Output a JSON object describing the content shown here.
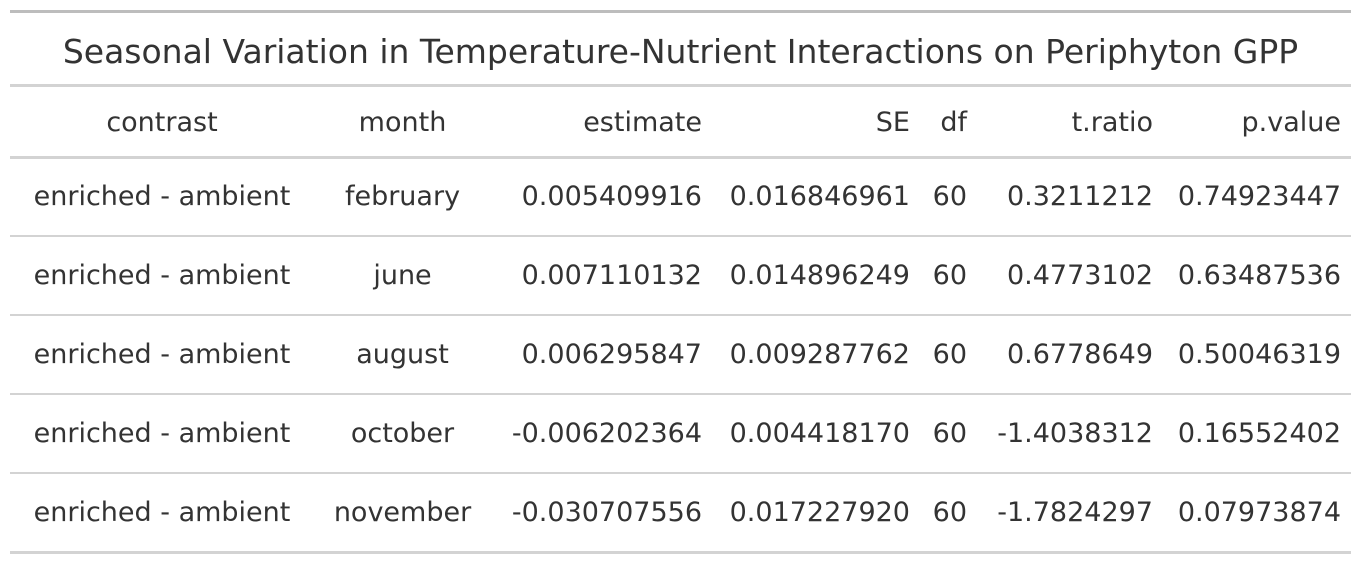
{
  "title": "Seasonal Variation in Temperature-Nutrient Interactions on Periphyton GPP",
  "columns": {
    "contrast": "contrast",
    "month": "month",
    "estimate": "estimate",
    "se": "SE",
    "df": "df",
    "tratio": "t.ratio",
    "pvalue": "p.value"
  },
  "rows": [
    {
      "contrast": "enriched - ambient",
      "month": "february",
      "estimate": "0.005409916",
      "se": "0.016846961",
      "df": "60",
      "tratio": "0.3211212",
      "pvalue": "0.74923447"
    },
    {
      "contrast": "enriched - ambient",
      "month": "june",
      "estimate": "0.007110132",
      "se": "0.014896249",
      "df": "60",
      "tratio": "0.4773102",
      "pvalue": "0.63487536"
    },
    {
      "contrast": "enriched - ambient",
      "month": "august",
      "estimate": "0.006295847",
      "se": "0.009287762",
      "df": "60",
      "tratio": "0.6778649",
      "pvalue": "0.50046319"
    },
    {
      "contrast": "enriched - ambient",
      "month": "october",
      "estimate": "-0.006202364",
      "se": "0.004418170",
      "df": "60",
      "tratio": "-1.4038312",
      "pvalue": "0.16552402"
    },
    {
      "contrast": "enriched - ambient",
      "month": "november",
      "estimate": "-0.030707556",
      "se": "0.017227920",
      "df": "60",
      "tratio": "-1.7824297",
      "pvalue": "0.07973874"
    }
  ]
}
